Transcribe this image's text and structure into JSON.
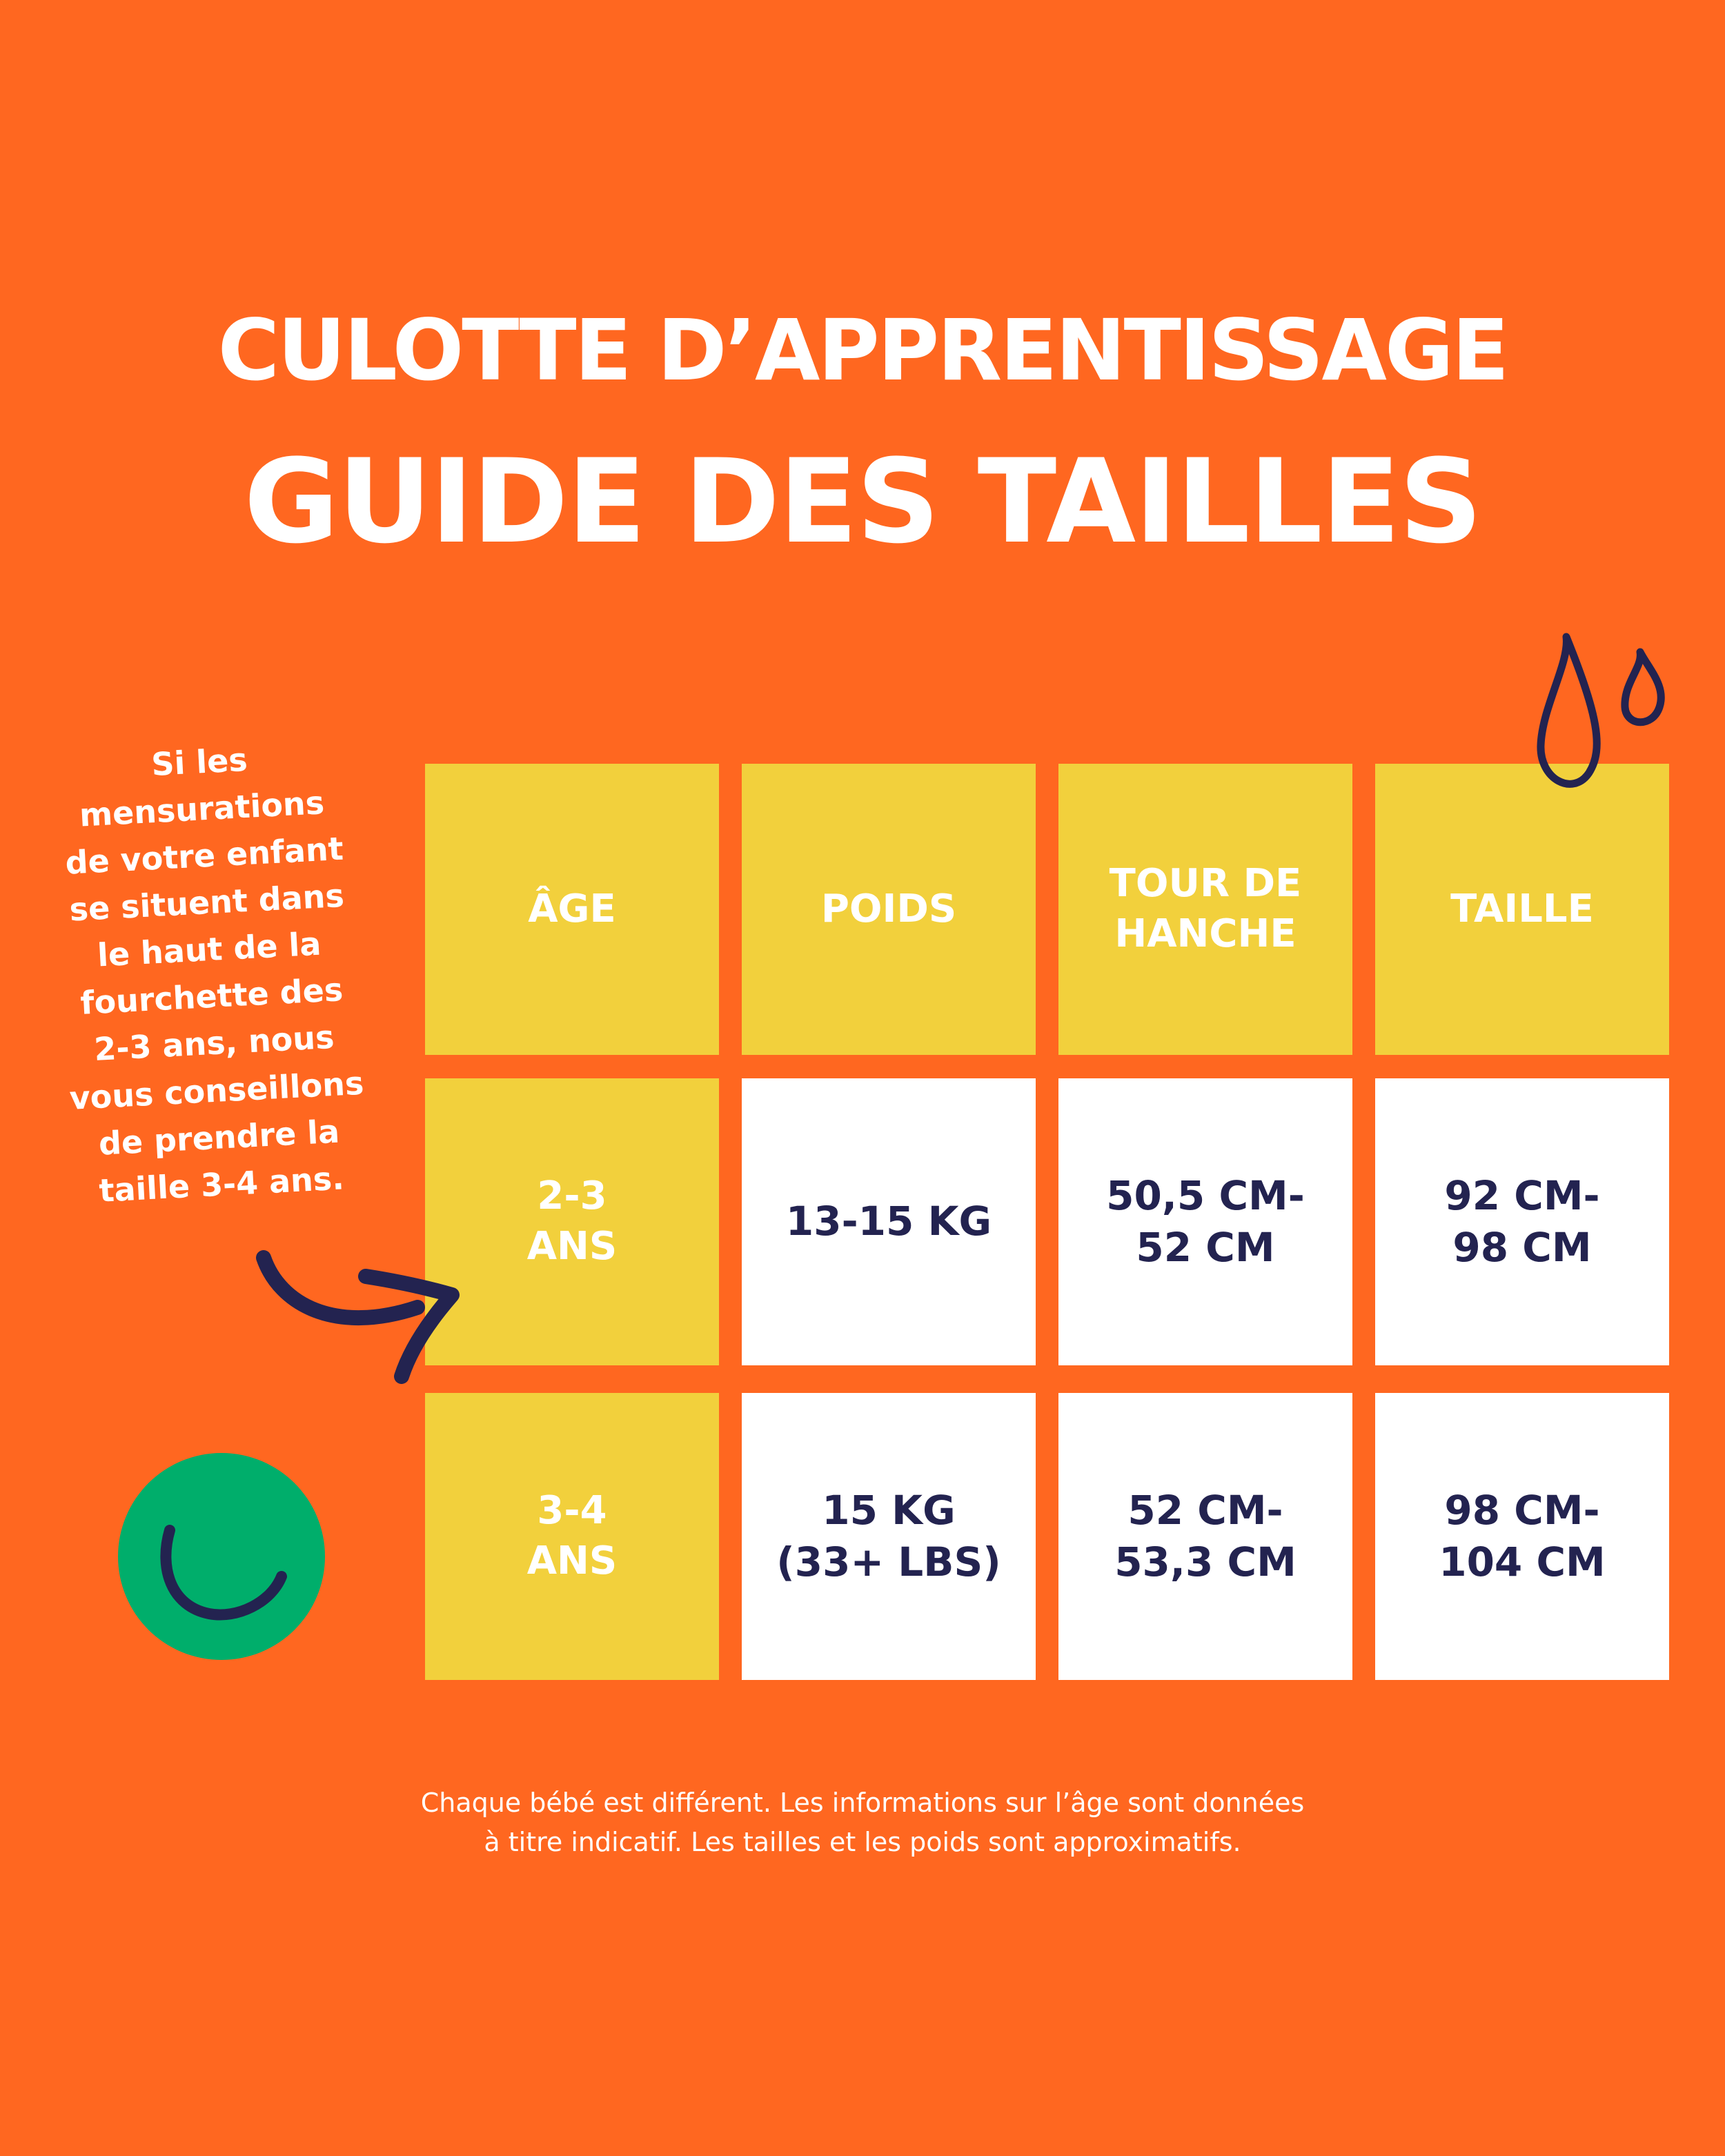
{
  "title": {
    "line1": "CULOTTE D’APPRENTISSAGE",
    "line2": "GUIDE DES TAILLES"
  },
  "side_note": [
    "Si les",
    "mensurations",
    "de votre enfant",
    "se situent dans",
    "le haut de la",
    "fourchette des",
    "2-3 ans, nous",
    "vous conseillons",
    "de prendre la",
    "taille 3-4 ans."
  ],
  "table": {
    "headers": [
      [
        "ÂGE"
      ],
      [
        "POIDS"
      ],
      [
        "TOUR DE",
        "HANCHE"
      ],
      [
        "TAILLE"
      ]
    ],
    "rows": [
      {
        "age": [
          "2-3",
          "ANS"
        ],
        "cells": [
          [
            "13-15 KG"
          ],
          [
            "50,5 CM-",
            "52 CM"
          ],
          [
            "92 CM-",
            "98 CM"
          ]
        ]
      },
      {
        "age": [
          "3-4",
          "ANS"
        ],
        "cells": [
          [
            "15 KG",
            "(33+ LBS)"
          ],
          [
            "52 CM-",
            "53,3 CM"
          ],
          [
            "98 CM-",
            "104 CM"
          ]
        ]
      }
    ]
  },
  "disclaimer": {
    "line1": "Chaque bébé est différent. Les informations sur l’âge sont données",
    "line2": "à titre indicatif. Les tailles et les poids sont approximatifs."
  },
  "colors": {
    "background": "#FF6720",
    "header_cell": "#F2D03C",
    "value_cell": "#FFFFFF",
    "value_text": "#232350",
    "circle": "#00AE6B",
    "ink": "#232350"
  },
  "icons": [
    "water-drops-icon",
    "curved-arrow-icon",
    "smile-circle-icon"
  ]
}
